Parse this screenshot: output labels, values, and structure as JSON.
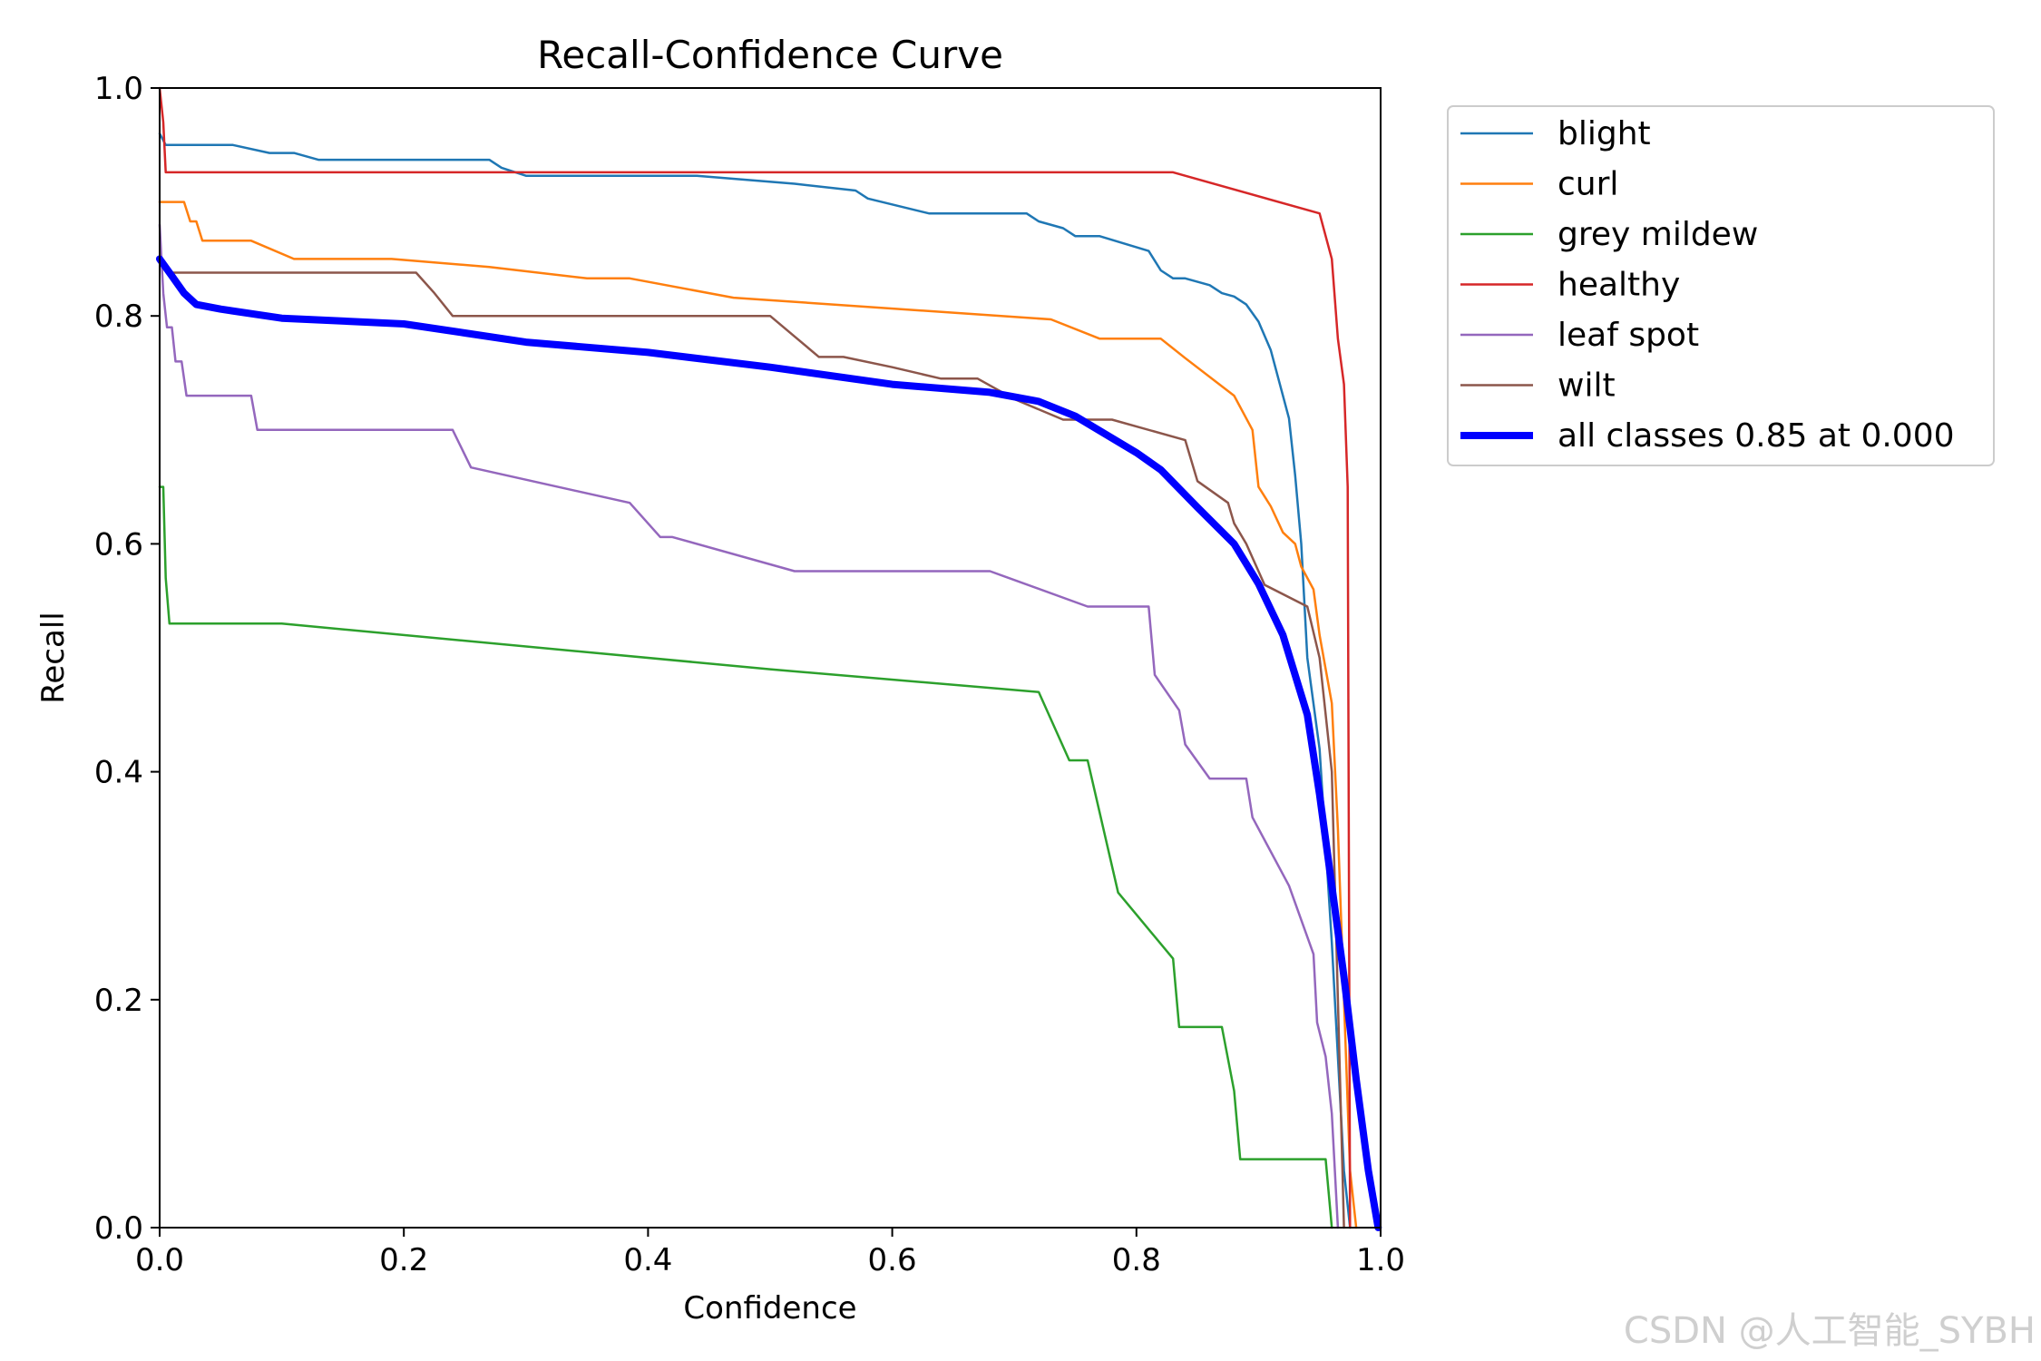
{
  "chart_data": {
    "type": "line",
    "title": "Recall-Confidence Curve",
    "xlabel": "Confidence",
    "ylabel": "Recall",
    "xlim": [
      0,
      1
    ],
    "ylim": [
      0,
      1
    ],
    "xticks": [
      "0.0",
      "0.2",
      "0.4",
      "0.6",
      "0.8",
      "1.0"
    ],
    "yticks": [
      "0.0",
      "0.2",
      "0.4",
      "0.6",
      "0.8",
      "1.0"
    ],
    "grid": false,
    "legend_position": "outside-top-right",
    "series": [
      {
        "name": "blight",
        "color": "#1f77b4",
        "width": "thin",
        "points": [
          [
            0.0,
            0.96
          ],
          [
            0.005,
            0.95
          ],
          [
            0.06,
            0.95
          ],
          [
            0.09,
            0.943
          ],
          [
            0.11,
            0.943
          ],
          [
            0.13,
            0.937
          ],
          [
            0.27,
            0.937
          ],
          [
            0.28,
            0.93
          ],
          [
            0.3,
            0.923
          ],
          [
            0.44,
            0.923
          ],
          [
            0.52,
            0.916
          ],
          [
            0.57,
            0.91
          ],
          [
            0.58,
            0.903
          ],
          [
            0.63,
            0.89
          ],
          [
            0.71,
            0.89
          ],
          [
            0.72,
            0.883
          ],
          [
            0.74,
            0.877
          ],
          [
            0.75,
            0.87
          ],
          [
            0.77,
            0.87
          ],
          [
            0.81,
            0.857
          ],
          [
            0.82,
            0.84
          ],
          [
            0.83,
            0.833
          ],
          [
            0.84,
            0.833
          ],
          [
            0.86,
            0.827
          ],
          [
            0.87,
            0.82
          ],
          [
            0.88,
            0.817
          ],
          [
            0.89,
            0.81
          ],
          [
            0.9,
            0.795
          ],
          [
            0.91,
            0.77
          ],
          [
            0.92,
            0.73
          ],
          [
            0.925,
            0.71
          ],
          [
            0.93,
            0.66
          ],
          [
            0.935,
            0.6
          ],
          [
            0.94,
            0.5
          ],
          [
            0.95,
            0.42
          ],
          [
            0.96,
            0.25
          ],
          [
            0.965,
            0.15
          ],
          [
            0.97,
            0.05
          ],
          [
            0.975,
            0.0
          ]
        ]
      },
      {
        "name": "curl",
        "color": "#ff7f0e",
        "width": "thin",
        "points": [
          [
            0.0,
            0.9
          ],
          [
            0.02,
            0.9
          ],
          [
            0.025,
            0.883
          ],
          [
            0.03,
            0.883
          ],
          [
            0.035,
            0.866
          ],
          [
            0.075,
            0.866
          ],
          [
            0.11,
            0.85
          ],
          [
            0.19,
            0.85
          ],
          [
            0.27,
            0.843
          ],
          [
            0.35,
            0.833
          ],
          [
            0.385,
            0.833
          ],
          [
            0.47,
            0.816
          ],
          [
            0.73,
            0.797
          ],
          [
            0.77,
            0.78
          ],
          [
            0.82,
            0.78
          ],
          [
            0.84,
            0.763
          ],
          [
            0.88,
            0.73
          ],
          [
            0.895,
            0.7
          ],
          [
            0.9,
            0.65
          ],
          [
            0.91,
            0.633
          ],
          [
            0.92,
            0.61
          ],
          [
            0.93,
            0.6
          ],
          [
            0.935,
            0.58
          ],
          [
            0.945,
            0.56
          ],
          [
            0.95,
            0.52
          ],
          [
            0.96,
            0.46
          ],
          [
            0.965,
            0.35
          ],
          [
            0.97,
            0.2
          ],
          [
            0.975,
            0.05
          ],
          [
            0.98,
            0.0
          ]
        ]
      },
      {
        "name": "grey mildew",
        "color": "#2ca02c",
        "width": "thin",
        "points": [
          [
            0.0,
            0.65
          ],
          [
            0.003,
            0.65
          ],
          [
            0.005,
            0.57
          ],
          [
            0.008,
            0.53
          ],
          [
            0.1,
            0.53
          ],
          [
            0.5,
            0.49
          ],
          [
            0.72,
            0.47
          ],
          [
            0.745,
            0.41
          ],
          [
            0.76,
            0.41
          ],
          [
            0.785,
            0.294
          ],
          [
            0.83,
            0.236
          ],
          [
            0.835,
            0.176
          ],
          [
            0.87,
            0.176
          ],
          [
            0.88,
            0.12
          ],
          [
            0.885,
            0.06
          ],
          [
            0.955,
            0.06
          ],
          [
            0.96,
            0.0
          ]
        ]
      },
      {
        "name": "healthy",
        "color": "#d62728",
        "width": "thin",
        "points": [
          [
            0.0,
            1.0
          ],
          [
            0.003,
            0.97
          ],
          [
            0.005,
            0.926
          ],
          [
            0.83,
            0.926
          ],
          [
            0.95,
            0.89
          ],
          [
            0.96,
            0.85
          ],
          [
            0.965,
            0.78
          ],
          [
            0.97,
            0.74
          ],
          [
            0.973,
            0.65
          ],
          [
            0.975,
            0.0
          ]
        ]
      },
      {
        "name": "leaf spot",
        "color": "#9467bd",
        "width": "thin",
        "points": [
          [
            0.0,
            0.88
          ],
          [
            0.003,
            0.82
          ],
          [
            0.006,
            0.79
          ],
          [
            0.01,
            0.79
          ],
          [
            0.013,
            0.76
          ],
          [
            0.018,
            0.76
          ],
          [
            0.022,
            0.73
          ],
          [
            0.075,
            0.73
          ],
          [
            0.08,
            0.7
          ],
          [
            0.24,
            0.7
          ],
          [
            0.255,
            0.667
          ],
          [
            0.385,
            0.636
          ],
          [
            0.41,
            0.606
          ],
          [
            0.42,
            0.606
          ],
          [
            0.52,
            0.576
          ],
          [
            0.68,
            0.576
          ],
          [
            0.76,
            0.545
          ],
          [
            0.81,
            0.545
          ],
          [
            0.815,
            0.485
          ],
          [
            0.835,
            0.454
          ],
          [
            0.84,
            0.424
          ],
          [
            0.86,
            0.394
          ],
          [
            0.89,
            0.394
          ],
          [
            0.895,
            0.36
          ],
          [
            0.925,
            0.3
          ],
          [
            0.945,
            0.24
          ],
          [
            0.948,
            0.18
          ],
          [
            0.955,
            0.15
          ],
          [
            0.96,
            0.1
          ],
          [
            0.965,
            0.0
          ]
        ]
      },
      {
        "name": "wilt",
        "color": "#8c564b",
        "width": "thin",
        "points": [
          [
            0.0,
            0.85
          ],
          [
            0.01,
            0.838
          ],
          [
            0.21,
            0.838
          ],
          [
            0.225,
            0.82
          ],
          [
            0.24,
            0.8
          ],
          [
            0.5,
            0.8
          ],
          [
            0.52,
            0.782
          ],
          [
            0.54,
            0.764
          ],
          [
            0.56,
            0.764
          ],
          [
            0.6,
            0.755
          ],
          [
            0.64,
            0.745
          ],
          [
            0.67,
            0.745
          ],
          [
            0.7,
            0.727
          ],
          [
            0.74,
            0.709
          ],
          [
            0.78,
            0.709
          ],
          [
            0.84,
            0.691
          ],
          [
            0.85,
            0.655
          ],
          [
            0.875,
            0.636
          ],
          [
            0.88,
            0.618
          ],
          [
            0.89,
            0.6
          ],
          [
            0.905,
            0.564
          ],
          [
            0.94,
            0.545
          ],
          [
            0.95,
            0.5
          ],
          [
            0.96,
            0.4
          ],
          [
            0.965,
            0.2
          ],
          [
            0.97,
            0.0
          ]
        ]
      },
      {
        "name": "all classes 0.85 at 0.000",
        "color": "#0000ff",
        "width": "thick",
        "points": [
          [
            0.0,
            0.85
          ],
          [
            0.01,
            0.835
          ],
          [
            0.02,
            0.82
          ],
          [
            0.03,
            0.81
          ],
          [
            0.05,
            0.806
          ],
          [
            0.1,
            0.798
          ],
          [
            0.2,
            0.793
          ],
          [
            0.25,
            0.785
          ],
          [
            0.3,
            0.777
          ],
          [
            0.4,
            0.768
          ],
          [
            0.5,
            0.755
          ],
          [
            0.6,
            0.74
          ],
          [
            0.68,
            0.733
          ],
          [
            0.72,
            0.725
          ],
          [
            0.75,
            0.712
          ],
          [
            0.8,
            0.68
          ],
          [
            0.82,
            0.665
          ],
          [
            0.85,
            0.632
          ],
          [
            0.88,
            0.6
          ],
          [
            0.9,
            0.565
          ],
          [
            0.92,
            0.52
          ],
          [
            0.94,
            0.45
          ],
          [
            0.95,
            0.38
          ],
          [
            0.96,
            0.3
          ],
          [
            0.97,
            0.22
          ],
          [
            0.98,
            0.13
          ],
          [
            0.99,
            0.05
          ],
          [
            0.998,
            0.0
          ]
        ]
      }
    ]
  },
  "watermark": "CSDN @人工智能_SYBH"
}
